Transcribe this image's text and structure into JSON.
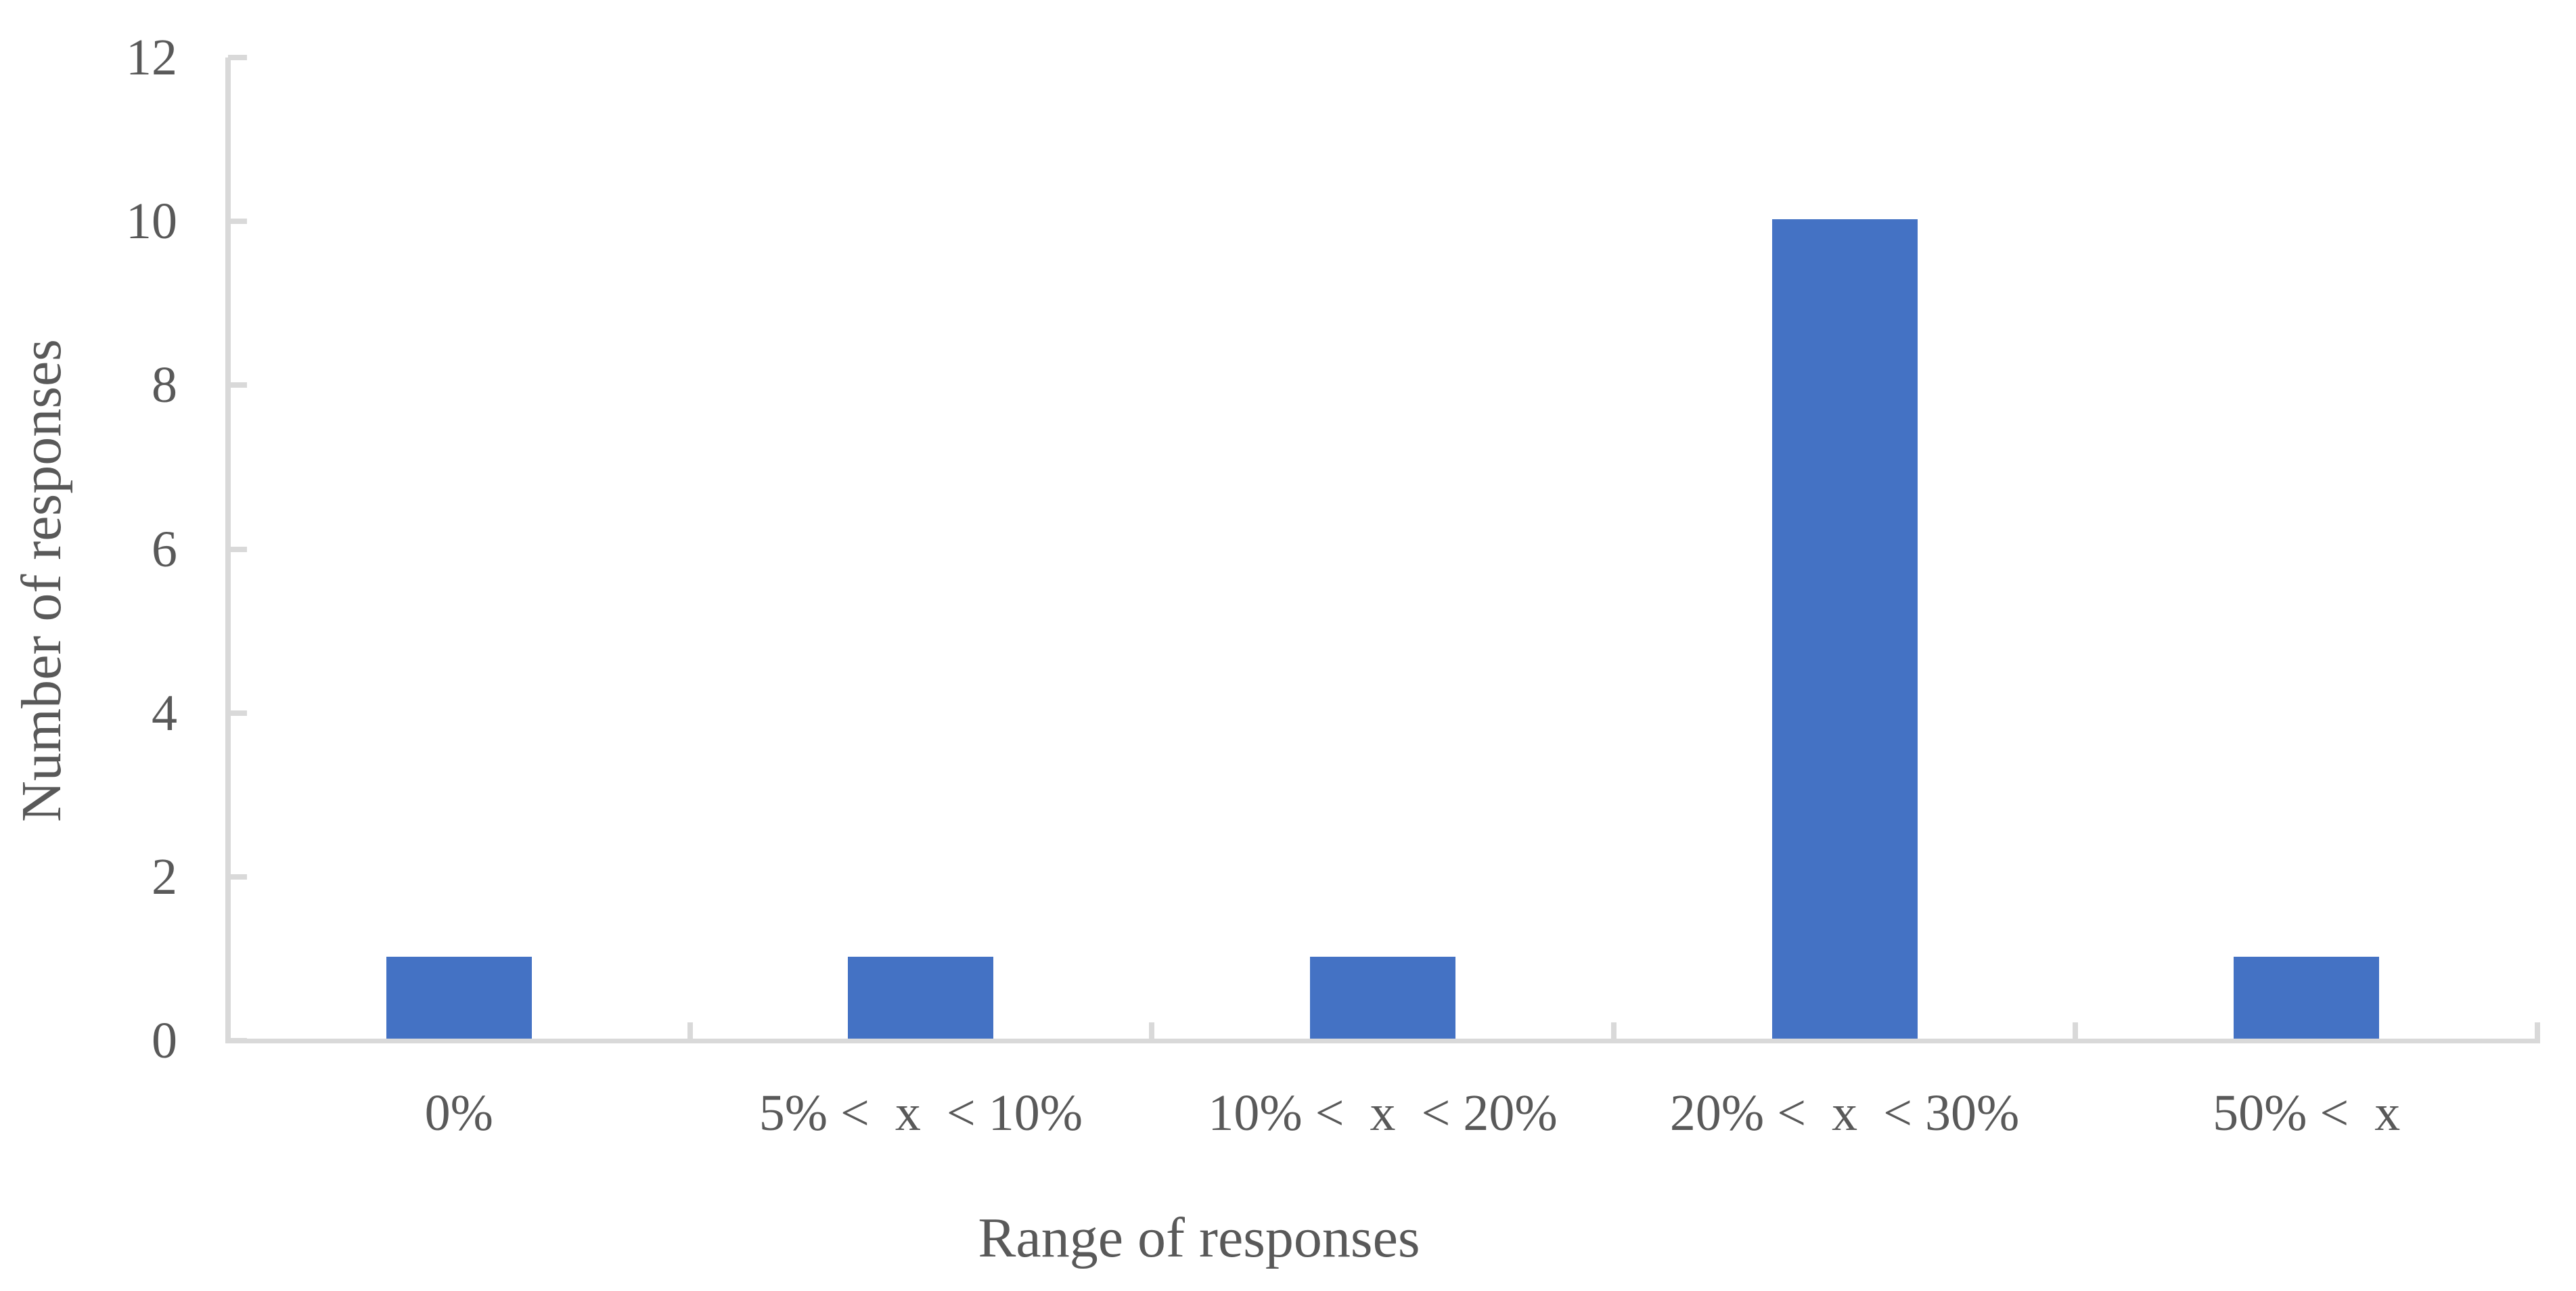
{
  "chart_data": {
    "type": "bar",
    "categories": [
      "0%",
      "5% <  x  < 10%",
      "10% <  x  < 20%",
      "20% <  x  < 30%",
      "50% <  x"
    ],
    "values": [
      1,
      1,
      1,
      10,
      1
    ],
    "title": "",
    "xlabel": "Range of responses",
    "ylabel": "Number of responses",
    "ylim": [
      0,
      12
    ],
    "yticks": [
      0,
      2,
      4,
      6,
      8,
      10,
      12
    ],
    "grid": false,
    "legend": "none",
    "colors": {
      "bar": "#4472c4",
      "axis": "#d9d9d9",
      "text": "#595959",
      "background": "#ffffff"
    }
  }
}
